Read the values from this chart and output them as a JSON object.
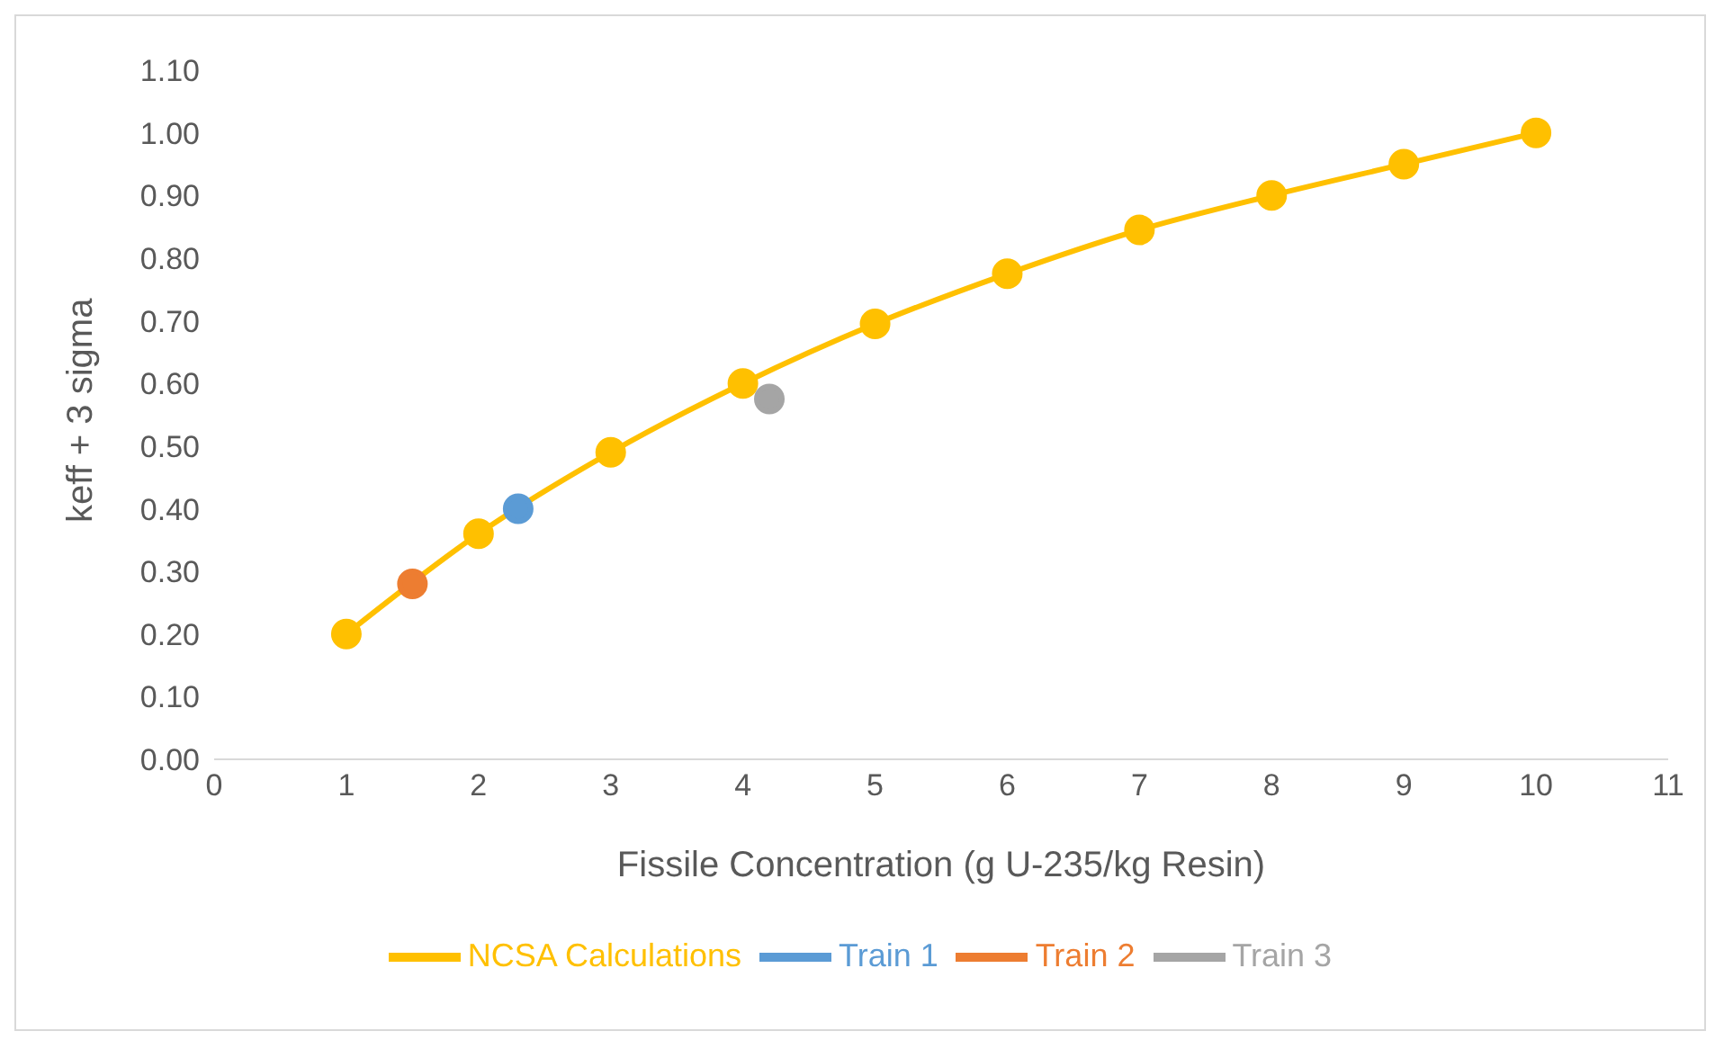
{
  "chart_data": {
    "type": "line",
    "xlabel": "Fissile Concentration (g U-235/kg Resin)",
    "ylabel": "keff + 3 sigma",
    "xlim": [
      0,
      11
    ],
    "xticks": [
      0,
      1,
      2,
      3,
      4,
      5,
      6,
      7,
      8,
      9,
      10,
      11
    ],
    "ylim": [
      0,
      1.1
    ],
    "yticks": [
      {
        "value": 0,
        "label": "0.00"
      },
      {
        "value": 0.1,
        "label": "0.10"
      },
      {
        "value": 0.2,
        "label": "0.20"
      },
      {
        "value": 0.3,
        "label": "0.30"
      },
      {
        "value": 0.4,
        "label": "0.40"
      },
      {
        "value": 0.5,
        "label": "0.50"
      },
      {
        "value": 0.6,
        "label": "0.60"
      },
      {
        "value": 0.7,
        "label": "0.70"
      },
      {
        "value": 0.8,
        "label": "0.80"
      },
      {
        "value": 0.9,
        "label": "0.90"
      },
      {
        "value": 1,
        "label": "1.00"
      },
      {
        "value": 1.1,
        "label": "1.10"
      }
    ],
    "grid": false,
    "legend": "bottom",
    "marker": "circle",
    "series": [
      {
        "name": "NCSA Calculations",
        "color": "#ffc000",
        "x": [
          1,
          2,
          3,
          4,
          5,
          6,
          7,
          8,
          9,
          10
        ],
        "values": [
          0.2,
          0.36,
          0.49,
          0.6,
          0.695,
          0.775,
          0.845,
          0.9,
          0.95,
          1.0
        ]
      },
      {
        "name": "Train 1",
        "color": "#5b9bd5",
        "x": [
          2.3
        ],
        "values": [
          0.4
        ]
      },
      {
        "name": "Train 2",
        "color": "#ed7d31",
        "x": [
          1.5
        ],
        "values": [
          0.28
        ]
      },
      {
        "name": "Train 3",
        "color": "#a5a5a5",
        "x": [
          4.2
        ],
        "values": [
          0.575
        ]
      }
    ]
  }
}
